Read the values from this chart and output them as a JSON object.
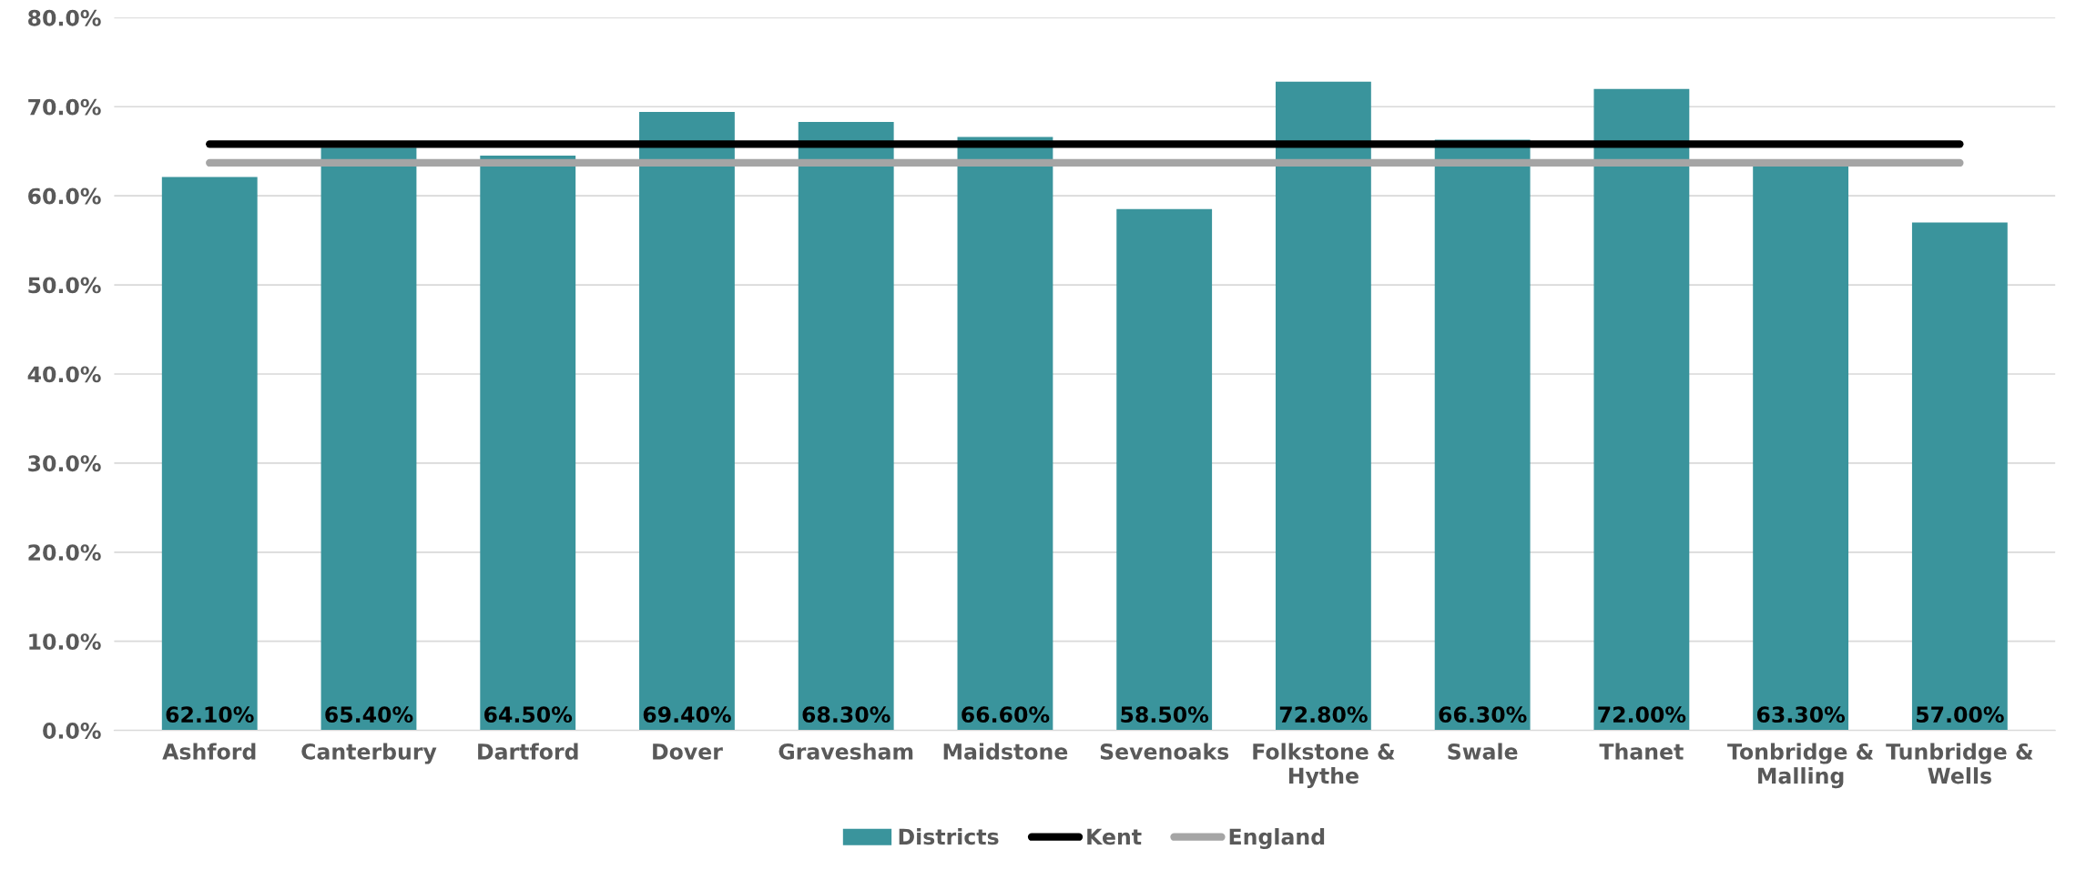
{
  "chart_data": {
    "type": "bar",
    "categories": [
      "Ashford",
      "Canterbury",
      "Dartford",
      "Dover",
      "Gravesham",
      "Maidstone",
      "Sevenoaks",
      "Folkstone &\nHythe",
      "Swale",
      "Thanet",
      "Tonbridge &\nMalling",
      "Tunbridge &\nWells"
    ],
    "series": [
      {
        "name": "Districts",
        "color": "#3a949c",
        "values": [
          62.1,
          65.4,
          64.5,
          69.4,
          68.3,
          66.6,
          58.5,
          72.8,
          66.3,
          72.0,
          63.3,
          57.0
        ],
        "value_labels": [
          "62.10%",
          "65.40%",
          "64.50%",
          "69.40%",
          "68.30%",
          "66.60%",
          "58.50%",
          "72.80%",
          "66.30%",
          "72.00%",
          "63.30%",
          "57.00%"
        ]
      },
      {
        "name": "Kent",
        "type": "line",
        "color": "#000000",
        "values": [
          65.8,
          65.8,
          65.8,
          65.8,
          65.8,
          65.8,
          65.8,
          65.8,
          65.8,
          65.8,
          65.8,
          65.8
        ]
      },
      {
        "name": "England",
        "type": "line",
        "color": "#a5a5a5",
        "values": [
          63.7,
          63.7,
          63.7,
          63.7,
          63.7,
          63.7,
          63.7,
          63.7,
          63.7,
          63.7,
          63.7,
          63.7
        ]
      }
    ],
    "ylim": [
      0,
      80
    ],
    "yticks": [
      {
        "value": 0,
        "label": "0.0%"
      },
      {
        "value": 10,
        "label": "10.0%"
      },
      {
        "value": 20,
        "label": "20.0%"
      },
      {
        "value": 30,
        "label": "30.0%"
      },
      {
        "value": 40,
        "label": "40.0%"
      },
      {
        "value": 50,
        "label": "50.0%"
      },
      {
        "value": 60,
        "label": "60.0%"
      },
      {
        "value": 70,
        "label": "70.0%"
      },
      {
        "value": 80,
        "label": "80.0%"
      }
    ],
    "grid": "y",
    "legend": "bottom",
    "marker": "none",
    "line_style": "solid"
  }
}
